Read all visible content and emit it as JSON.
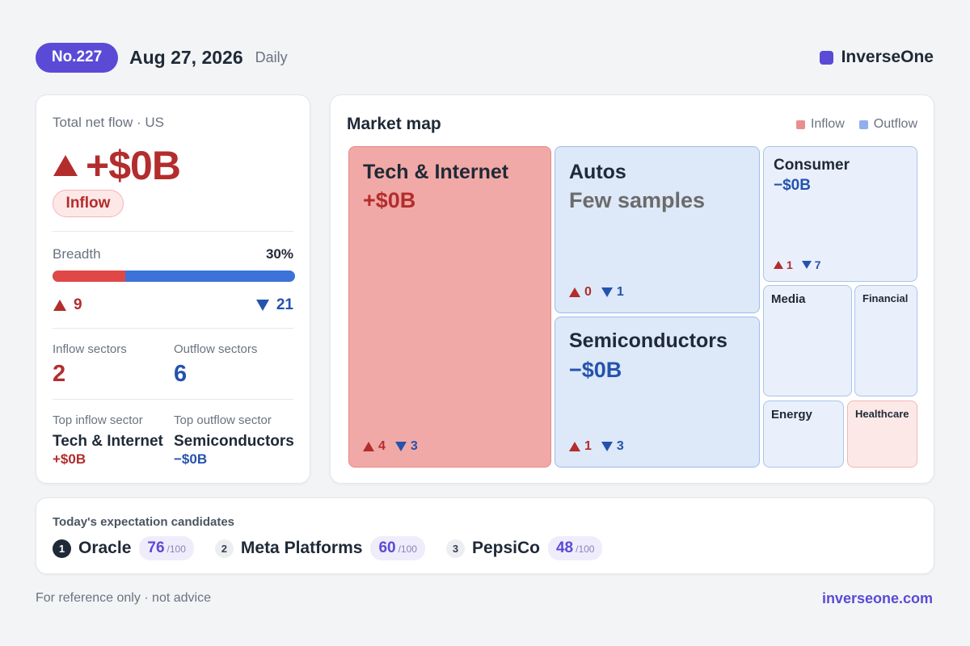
{
  "header": {
    "issue": "No.227",
    "date": "Aug 27, 2026",
    "period": "Daily",
    "brand": "InverseOne",
    "accent_color": "#5b4ad6"
  },
  "summary": {
    "total_label": "Total net flow · US",
    "total_value": "+$0B",
    "direction_badge": "Inflow",
    "breadth_label": "Breadth",
    "breadth_pct_text": "30%",
    "breadth_fraction": 0.3,
    "up_count": "9",
    "down_count": "21",
    "inflow_sectors_label": "Inflow sectors",
    "inflow_sectors_value": "2",
    "outflow_sectors_label": "Outflow sectors",
    "outflow_sectors_value": "6",
    "top_inflow_label": "Top inflow sector",
    "top_inflow_name": "Tech & Internet",
    "top_inflow_value": "+$0B",
    "top_outflow_label": "Top outflow sector",
    "top_outflow_name": "Semiconductors",
    "top_outflow_value": "−$0B"
  },
  "market_map": {
    "title": "Market map",
    "legend": {
      "inflow": "Inflow",
      "outflow": "Outflow"
    },
    "colors": {
      "inflow": "#e88f8c",
      "outflow": "#8fb0ea"
    },
    "tiles": {
      "tech": {
        "name": "Tech & Internet",
        "value": "+$0B",
        "up": "4",
        "down": "3"
      },
      "autos": {
        "name": "Autos",
        "value": "Few samples",
        "up": "0",
        "down": "1"
      },
      "semis": {
        "name": "Semiconductors",
        "value": "−$0B",
        "up": "1",
        "down": "3"
      },
      "consumer": {
        "name": "Consumer",
        "value": "−$0B",
        "up": "1",
        "down": "7"
      },
      "media": {
        "name": "Media"
      },
      "financial": {
        "name": "Financial"
      },
      "energy": {
        "name": "Energy"
      },
      "healthcare": {
        "name": "Healthcare"
      }
    }
  },
  "candidates": {
    "title": "Today's expectation candidates",
    "items": [
      {
        "rank": "1",
        "name": "Oracle",
        "score": "76",
        "max": "/100"
      },
      {
        "rank": "2",
        "name": "Meta Platforms",
        "score": "60",
        "max": "/100"
      },
      {
        "rank": "3",
        "name": "PepsiCo",
        "score": "48",
        "max": "/100"
      }
    ]
  },
  "footer": {
    "disclaimer": "For reference only · not advice",
    "site": "inverseone.com"
  }
}
